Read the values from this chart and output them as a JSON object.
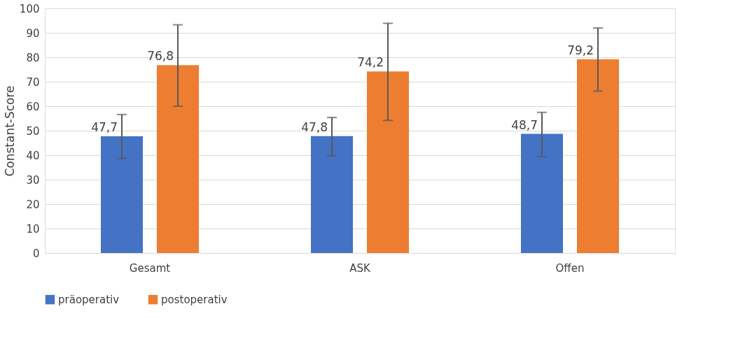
{
  "chart_data": {
    "type": "bar",
    "ylabel": "Constant-Score",
    "categories": [
      "Gesamt",
      "ASK",
      "Offen"
    ],
    "series": [
      {
        "name": "präoperativ",
        "color": "#4472c4",
        "values": [
          47.7,
          47.8,
          48.7
        ],
        "value_labels": [
          "47,7",
          "47,8",
          "48,7"
        ],
        "errors": [
          [
            38.6,
            56.6
          ],
          [
            39.7,
            55.4
          ],
          [
            39.4,
            57.5
          ]
        ]
      },
      {
        "name": "postoperativ",
        "color": "#ed7d31",
        "values": [
          76.8,
          74.2,
          79.2
        ],
        "value_labels": [
          "76,8",
          "74,2",
          "79,2"
        ],
        "errors": [
          [
            60.0,
            93.3
          ],
          [
            54.2,
            93.9
          ],
          [
            66.2,
            92.0
          ]
        ]
      }
    ],
    "ylim": [
      0,
      100
    ],
    "yticks": [
      0,
      10,
      20,
      30,
      40,
      50,
      60,
      70,
      80,
      90,
      100
    ],
    "grid": "y",
    "legend": "bottom"
  }
}
